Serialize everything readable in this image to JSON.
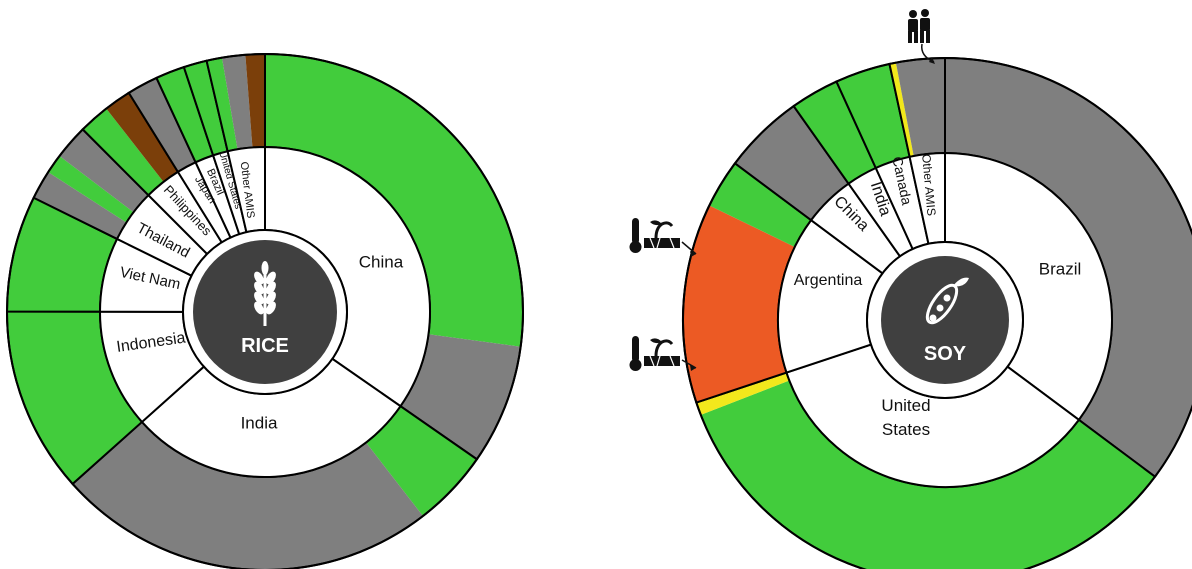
{
  "colors": {
    "green": "#42cc3c",
    "grey": "#7f7f7f",
    "brown": "#7b3f0a",
    "orange": "#ec5a24",
    "yellow": "#f2e81c",
    "inner": "#ffffff",
    "hub": "#404040",
    "outline": "#000000"
  },
  "chart_data": [
    {
      "type": "pie",
      "crop_label": "RICE",
      "crop_icon": "rice-plant-icon",
      "segments": [
        {
          "country": "China",
          "share": 28.6,
          "conditions": [
            {
              "status": "green",
              "share": 22.4
            },
            {
              "status": "grey",
              "share": 6.2
            }
          ]
        },
        {
          "country": "India",
          "share": 23.7,
          "conditions": [
            {
              "status": "green",
              "share": 4.0
            },
            {
              "status": "grey",
              "share": 19.7
            }
          ]
        },
        {
          "country": "Indonesia",
          "share": 9.6,
          "conditions": [
            {
              "status": "green",
              "share": 9.6
            }
          ]
        },
        {
          "country": "Viet Nam",
          "share": 6.0,
          "conditions": [
            {
              "status": "green",
              "share": 6.0
            }
          ]
        },
        {
          "country": "Thailand",
          "share": 4.3,
          "conditions": [
            {
              "status": "grey",
              "share": 1.5
            },
            {
              "status": "green",
              "share": 1.0
            },
            {
              "status": "grey",
              "share": 1.8
            }
          ]
        },
        {
          "country": "Philippines",
          "share": 3.0,
          "conditions": [
            {
              "status": "green",
              "share": 1.6
            },
            {
              "status": "brown",
              "share": 1.4
            }
          ]
        },
        {
          "country": "Japan",
          "share": 1.6,
          "conditions": [
            {
              "status": "grey",
              "share": 1.6
            }
          ]
        },
        {
          "country": "Brazil",
          "share": 1.5,
          "conditions": [
            {
              "status": "green",
              "share": 1.5
            }
          ]
        },
        {
          "country": "United States",
          "share": 1.2,
          "conditions": [
            {
              "status": "green",
              "share": 1.2
            }
          ]
        },
        {
          "country": "Other AMIS",
          "share": 3.0,
          "conditions": [
            {
              "status": "green",
              "share": 0.8
            },
            {
              "status": "grey",
              "share": 1.2
            },
            {
              "status": "brown",
              "share": 1.0
            }
          ]
        }
      ]
    },
    {
      "type": "pie",
      "crop_label": "SOY",
      "crop_icon": "soybean-pod-icon",
      "segments": [
        {
          "country": "Brazil",
          "share": 35.2,
          "conditions": [
            {
              "status": "grey",
              "share": 35.2
            }
          ]
        },
        {
          "country": "United States",
          "share": 34.7,
          "conditions": [
            {
              "status": "green",
              "share": 33.9
            },
            {
              "status": "yellow",
              "share": 0.8
            }
          ]
        },
        {
          "country": "Argentina",
          "share": 15.3,
          "conditions": [
            {
              "status": "orange",
              "share": 12.3
            },
            {
              "status": "green",
              "share": 3.0
            }
          ]
        },
        {
          "country": "China",
          "share": 5.0,
          "conditions": [
            {
              "status": "grey",
              "share": 5.0
            }
          ]
        },
        {
          "country": "India",
          "share": 3.0,
          "conditions": [
            {
              "status": "green",
              "share": 3.0
            }
          ]
        },
        {
          "country": "Canada",
          "share": 3.4,
          "conditions": [
            {
              "status": "green",
              "share": 3.4
            }
          ]
        },
        {
          "country": "Other AMIS",
          "share": 3.4,
          "conditions": [
            {
              "status": "yellow",
              "share": 0.4
            },
            {
              "status": "grey",
              "share": 3.0
            }
          ]
        }
      ],
      "markers": [
        {
          "name": "conflict-people-icon"
        },
        {
          "name": "drought-thermometer-icon"
        },
        {
          "name": "drought-thermometer-icon"
        }
      ]
    }
  ]
}
